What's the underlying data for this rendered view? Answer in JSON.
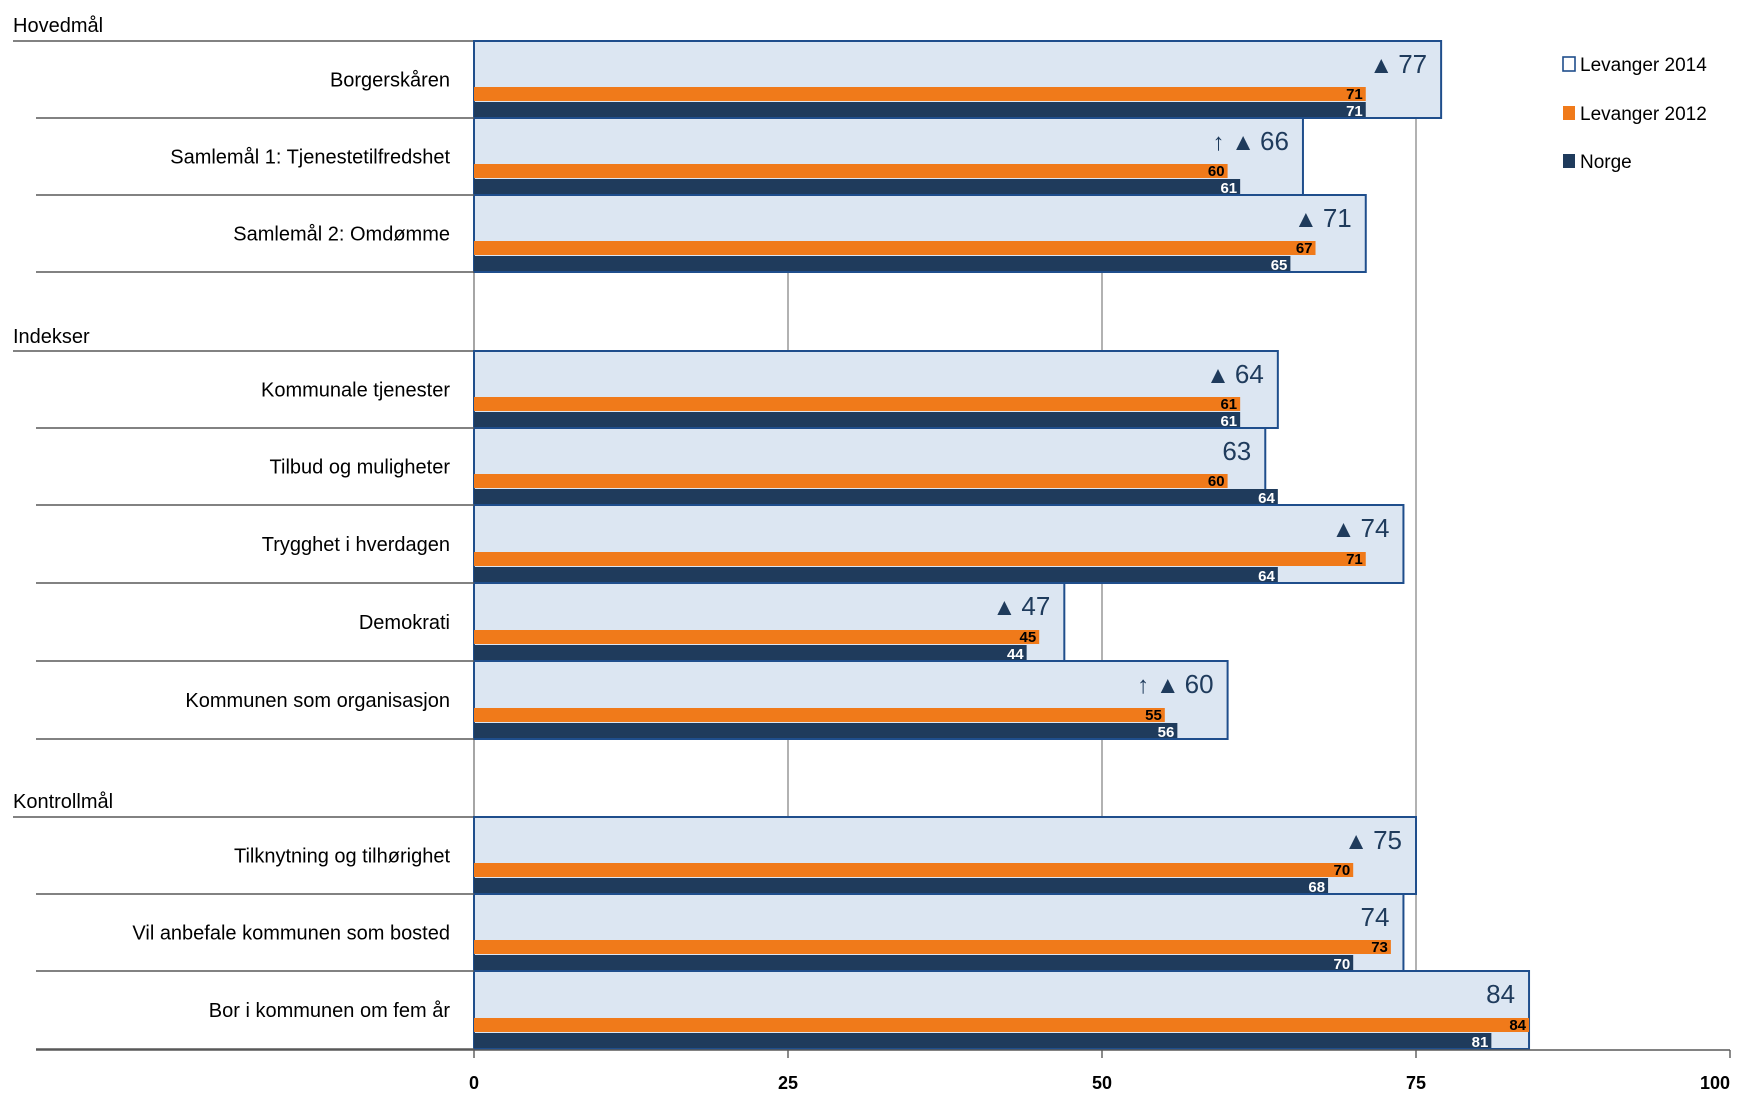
{
  "chart_data": {
    "type": "bar",
    "orientation": "horizontal",
    "xlim": [
      0,
      100
    ],
    "x_ticks": [
      "0",
      "25",
      "50",
      "75",
      "100"
    ],
    "grid": "vertical at 25, 50, 75",
    "legend_position": "top-right",
    "colors": {
      "Levanger 2014": "#dce6f2",
      "Levanger 2014 border": "#1f4e8c",
      "Levanger 2012": "#f07a1a",
      "Norge": "#1f3b5c"
    },
    "series": [
      {
        "name": "Levanger 2014"
      },
      {
        "name": "Levanger 2012"
      },
      {
        "name": "Norge"
      }
    ],
    "groups": [
      {
        "title": "Hovedmål",
        "rows": [
          {
            "label": "Borgerskåren",
            "levanger_2014": 77,
            "levanger_2012": 71,
            "norge": 71,
            "marker": "▲"
          },
          {
            "label": "Samlemål 1: Tjenestetilfredshet",
            "levanger_2014": 66,
            "levanger_2012": 60,
            "norge": 61,
            "marker": "↑ ▲"
          },
          {
            "label": "Samlemål 2: Omdømme",
            "levanger_2014": 71,
            "levanger_2012": 67,
            "norge": 65,
            "marker": "▲"
          }
        ]
      },
      {
        "title": "Indekser",
        "rows": [
          {
            "label": "Kommunale tjenester",
            "levanger_2014": 64,
            "levanger_2012": 61,
            "norge": 61,
            "marker": "▲"
          },
          {
            "label": "Tilbud og muligheter",
            "levanger_2014": 63,
            "levanger_2012": 60,
            "norge": 64,
            "marker": ""
          },
          {
            "label": "Trygghet i hverdagen",
            "levanger_2014": 74,
            "levanger_2012": 71,
            "norge": 64,
            "marker": "▲"
          },
          {
            "label": "Demokrati",
            "levanger_2014": 47,
            "levanger_2012": 45,
            "norge": 44,
            "marker": "▲"
          },
          {
            "label": "Kommunen som organisasjon",
            "levanger_2014": 60,
            "levanger_2012": 55,
            "norge": 56,
            "marker": "↑ ▲"
          }
        ]
      },
      {
        "title": "Kontrollmål",
        "rows": [
          {
            "label": "Tilknytning og tilhørighet",
            "levanger_2014": 75,
            "levanger_2012": 70,
            "norge": 68,
            "marker": "▲"
          },
          {
            "label": "Vil anbefale kommunen som bosted",
            "levanger_2014": 74,
            "levanger_2012": 73,
            "norge": 70,
            "marker": ""
          },
          {
            "label": "Bor i kommunen om fem år",
            "levanger_2014": 84,
            "levanger_2012": 84,
            "norge": 81,
            "marker": ""
          }
        ]
      }
    ]
  }
}
